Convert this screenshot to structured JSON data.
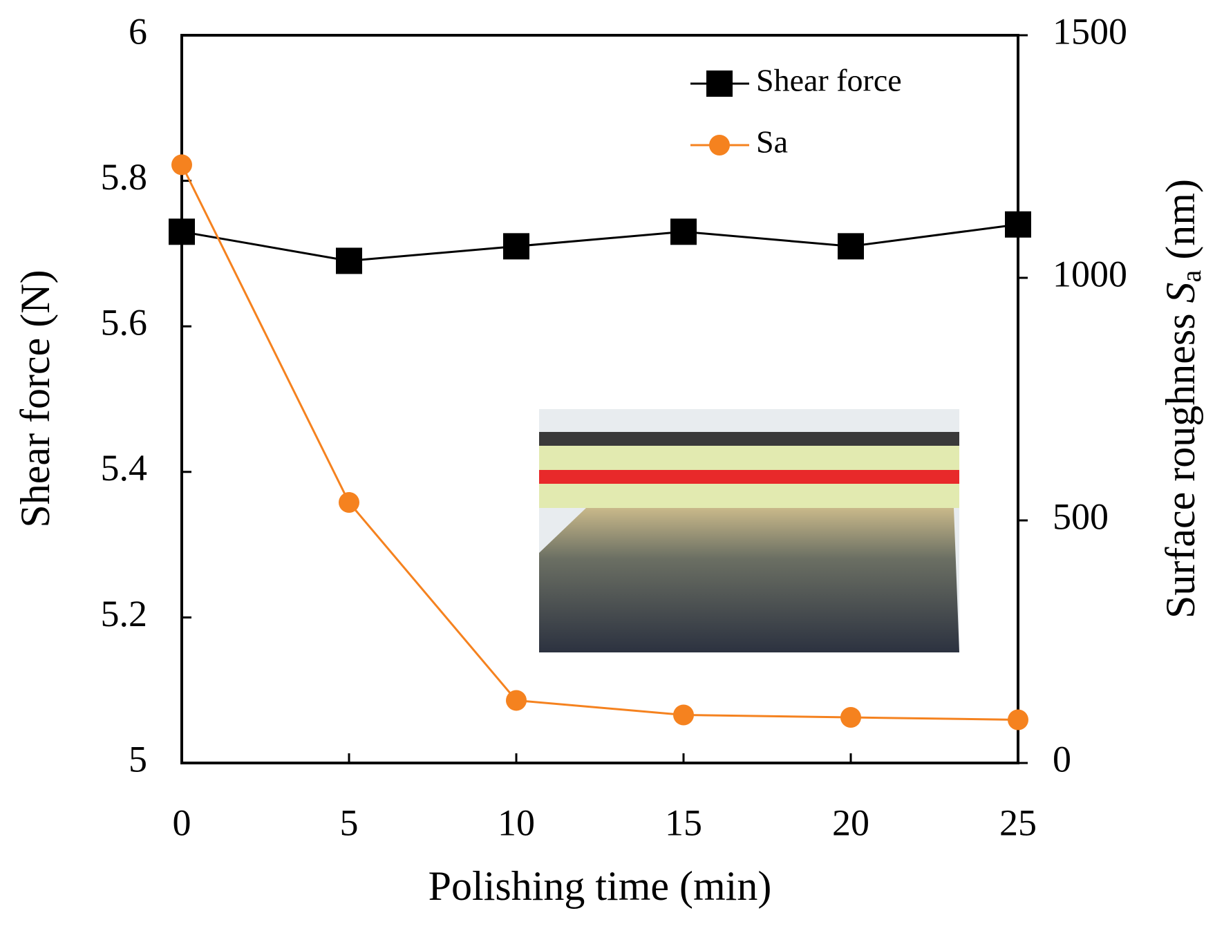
{
  "chart_data": {
    "type": "line",
    "xlabel": "Polishing time (min)",
    "ylabel": "Shear force (N)",
    "y2label": [
      "Surface roughness ",
      "S",
      "a",
      " (nm)"
    ],
    "x": [
      0,
      5,
      10,
      15,
      20,
      25
    ],
    "xlim": [
      0,
      25
    ],
    "xticks": [
      0,
      5,
      10,
      15,
      20,
      25
    ],
    "ylim": [
      5,
      6
    ],
    "yticks": [
      5,
      5.2,
      5.4,
      5.6,
      5.8,
      6
    ],
    "y2lim": [
      0,
      1500
    ],
    "y2ticks": [
      0,
      500,
      1000,
      1500
    ],
    "legend": "upper right",
    "series": [
      {
        "name": "Shear force",
        "color": "#000000",
        "marker": "square",
        "values": [
          5.73,
          5.69,
          5.71,
          5.73,
          5.71,
          5.74
        ]
      },
      {
        "name": "Sa",
        "color": "#f5821f",
        "marker": "circle",
        "axis": "y2",
        "values": [
          1233,
          537,
          129,
          99,
          94,
          89
        ]
      }
    ]
  }
}
